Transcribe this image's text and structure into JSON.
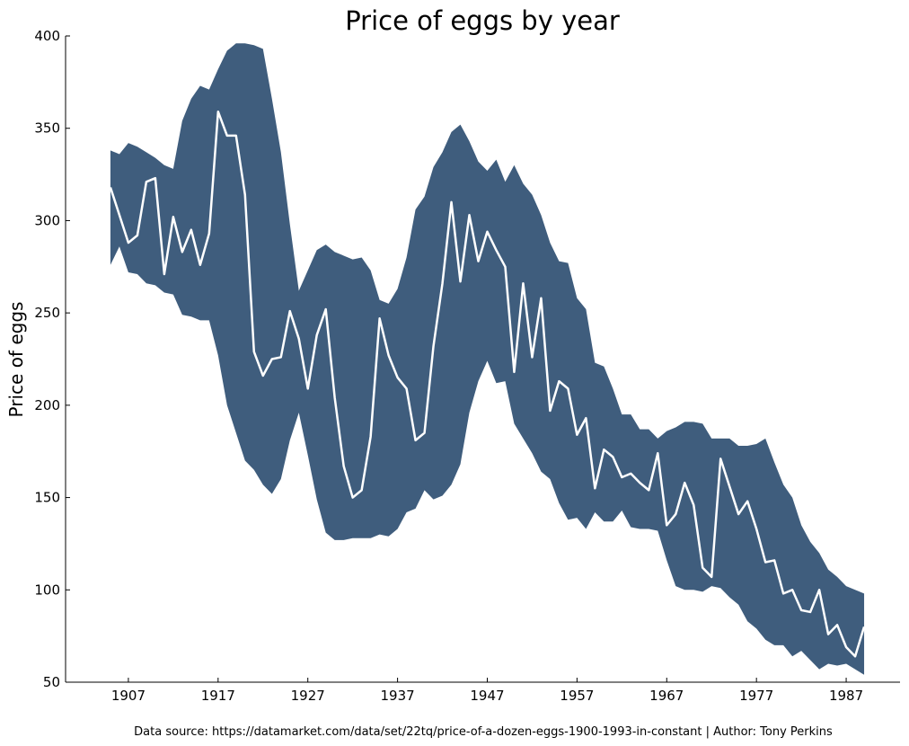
{
  "chart_data": {
    "type": "line",
    "title": "Price of eggs by year",
    "xlabel": "",
    "ylabel": "Price of eggs",
    "xlim": [
      1900,
      1993
    ],
    "ylim": [
      50,
      400
    ],
    "xticks": [
      1907,
      1917,
      1927,
      1937,
      1947,
      1957,
      1967,
      1977,
      1987
    ],
    "yticks": [
      50,
      100,
      150,
      200,
      250,
      300,
      350,
      400
    ],
    "grid": false,
    "colors": {
      "band": "#3f5d7d",
      "line": "#ffffff",
      "axes": "#000000"
    },
    "x": [
      1905,
      1906,
      1907,
      1908,
      1909,
      1910,
      1911,
      1912,
      1913,
      1914,
      1915,
      1916,
      1917,
      1918,
      1919,
      1920,
      1921,
      1922,
      1923,
      1924,
      1925,
      1926,
      1927,
      1928,
      1929,
      1930,
      1931,
      1932,
      1933,
      1934,
      1935,
      1936,
      1937,
      1938,
      1939,
      1940,
      1941,
      1942,
      1943,
      1944,
      1945,
      1946,
      1947,
      1948,
      1949,
      1950,
      1951,
      1952,
      1953,
      1954,
      1955,
      1956,
      1957,
      1958,
      1959,
      1960,
      1961,
      1962,
      1963,
      1964,
      1965,
      1966,
      1967,
      1968,
      1969,
      1970,
      1971,
      1972,
      1973,
      1974,
      1975,
      1976,
      1977,
      1978,
      1979,
      1980,
      1981,
      1982,
      1983,
      1984,
      1985,
      1986,
      1987,
      1988,
      1989
    ],
    "series": [
      {
        "type": "line",
        "values": [
          318,
          303,
          288,
          292,
          321,
          323,
          271,
          302,
          283,
          295,
          276,
          293,
          359,
          346,
          346,
          314,
          229,
          216,
          225,
          226,
          251,
          236,
          209,
          238,
          252,
          204,
          167,
          150,
          154,
          183,
          247,
          227,
          215,
          209,
          181,
          185,
          232,
          266,
          310,
          267,
          303,
          278,
          294,
          284,
          275,
          218,
          266,
          226,
          258,
          197,
          213,
          209,
          184,
          193,
          155,
          176,
          172,
          161,
          163,
          158,
          154,
          174,
          135,
          141,
          158,
          146,
          112,
          107,
          171,
          156,
          141,
          148,
          133,
          115,
          116,
          98,
          100,
          89,
          88,
          100,
          76,
          81,
          69,
          64,
          80
        ]
      },
      {
        "type": "band",
        "upper": [
          338,
          336,
          342,
          340,
          337,
          334,
          330,
          328,
          354,
          366,
          373,
          371,
          382,
          392,
          396,
          396,
          395,
          393,
          366,
          337,
          298,
          262,
          273,
          284,
          287,
          283,
          281,
          279,
          280,
          273,
          257,
          255,
          263,
          280,
          306,
          313,
          329,
          337,
          348,
          352,
          343,
          332,
          327,
          333,
          321,
          330,
          320,
          314,
          303,
          288,
          278,
          277,
          258,
          252,
          223,
          221,
          209,
          195,
          195,
          187,
          187,
          182,
          186,
          188,
          191,
          191,
          190,
          182,
          182,
          182,
          178,
          178,
          179,
          182,
          169,
          157,
          150,
          135,
          126,
          120,
          111,
          107,
          102,
          100,
          98
        ],
        "lower": [
          276,
          286,
          272,
          271,
          266,
          265,
          261,
          260,
          249,
          248,
          246,
          246,
          227,
          200,
          185,
          170,
          165,
          157,
          152,
          160,
          181,
          196,
          173,
          149,
          131,
          127,
          127,
          128,
          128,
          128,
          130,
          129,
          133,
          142,
          144,
          154,
          149,
          151,
          157,
          168,
          196,
          213,
          224,
          212,
          213,
          190,
          182,
          174,
          164,
          160,
          147,
          138,
          139,
          133,
          142,
          137,
          137,
          143,
          134,
          133,
          133,
          132,
          116,
          102,
          100,
          100,
          99,
          102,
          101,
          96,
          92,
          83,
          79,
          73,
          70,
          70,
          64,
          67,
          62,
          57,
          60,
          59,
          60,
          57,
          54
        ]
      }
    ]
  },
  "footer": {
    "note": "Data source: https://datamarket.com/data/set/22tq/price-of-a-dozen-eggs-1900-1993-in-constant | Author: Tony Perkins"
  }
}
